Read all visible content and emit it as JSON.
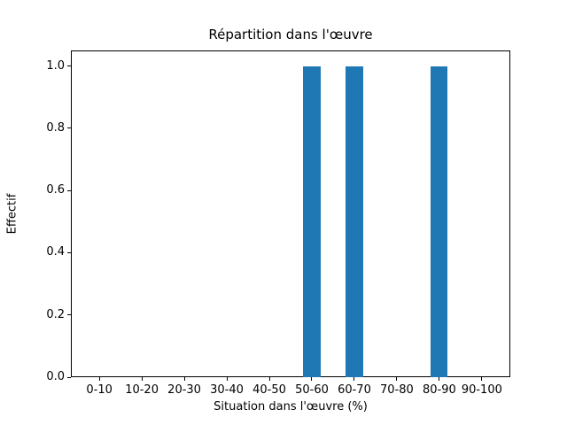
{
  "chart_data": {
    "type": "bar",
    "title": "Répartition dans l'œuvre",
    "xlabel": "Situation dans l'œuvre (%)",
    "ylabel": "Effectif",
    "categories": [
      "0-10",
      "10-20",
      "20-30",
      "30-40",
      "40-50",
      "50-60",
      "60-70",
      "70-80",
      "80-90",
      "90-100"
    ],
    "values": [
      0,
      0,
      0,
      0,
      0,
      1,
      1,
      0,
      1,
      0
    ],
    "ytick_labels": [
      "0.0",
      "0.2",
      "0.4",
      "0.6",
      "0.8",
      "1.0"
    ],
    "ytick_values": [
      0.0,
      0.2,
      0.4,
      0.6,
      0.8,
      1.0
    ],
    "ylim": [
      0,
      1.05
    ],
    "xlim_padding": 0.67,
    "bar_width_fraction": 0.4,
    "bar_color": "#1f77b4",
    "grid": false,
    "legend": null
  }
}
